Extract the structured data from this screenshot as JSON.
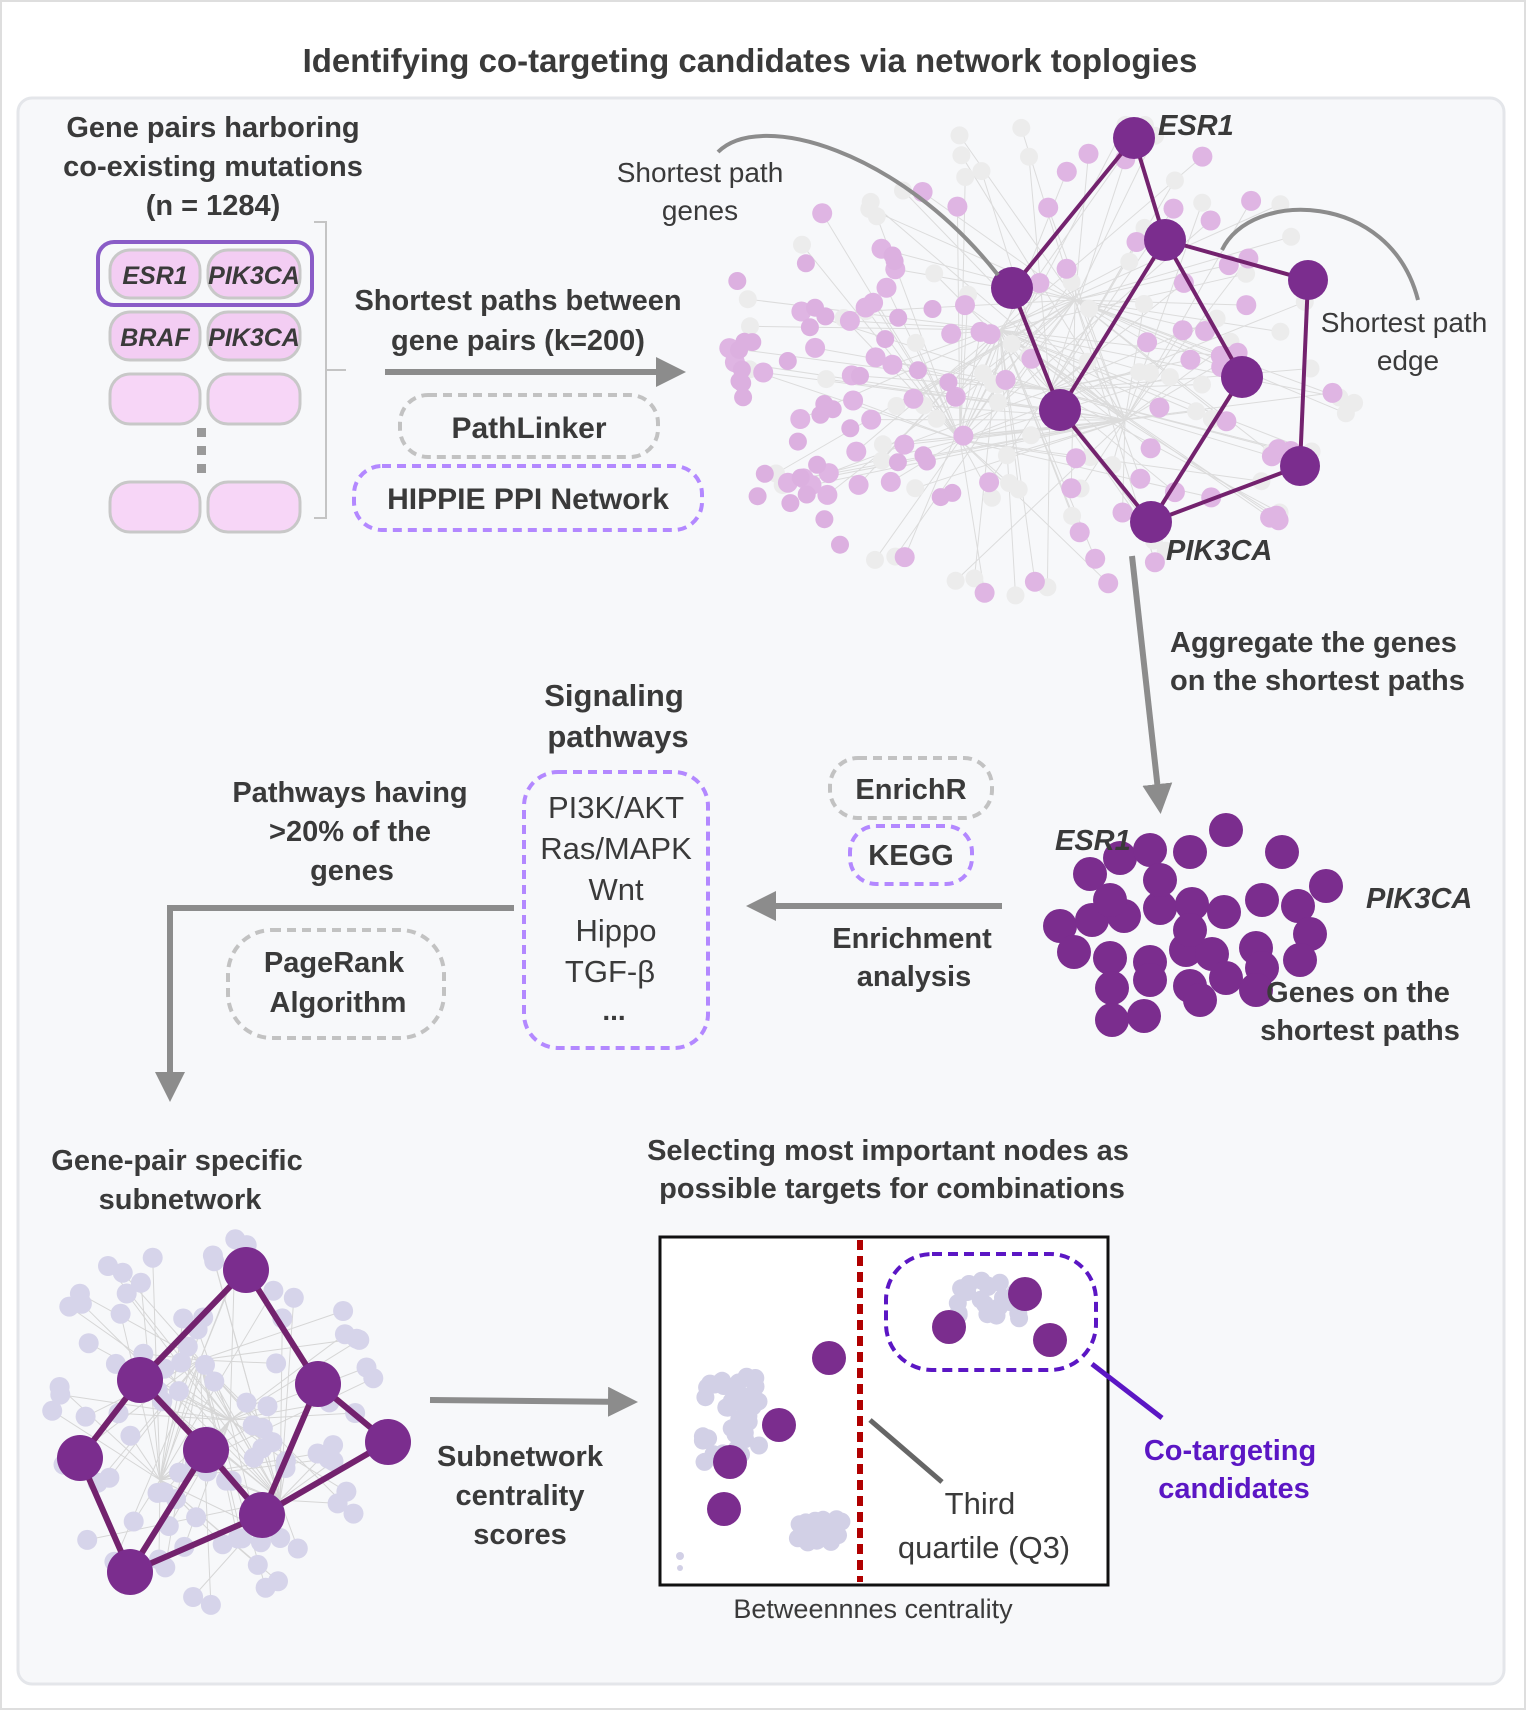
{
  "title": "Identifying co-targeting candidates via network toplogies",
  "gene_pairs": {
    "heading": [
      "Gene pairs harboring",
      "co-existing mutations",
      "(n = 1284)"
    ],
    "pairs": [
      [
        "ESR1",
        "PIK3CA"
      ],
      [
        "BRAF",
        "PIK3CA"
      ]
    ]
  },
  "shortest_paths": {
    "label": [
      "Shortest paths between",
      "gene pairs (k=200)"
    ],
    "tool": "PathLinker",
    "network": "HIPPIE PPI Network"
  },
  "network": {
    "node_top": "ESR1",
    "node_bottom": "PIK3CA",
    "genes_callout": [
      "Shortest path",
      "genes"
    ],
    "edge_callout": [
      "Shortest path",
      "edge"
    ]
  },
  "aggregate": {
    "label": [
      "Aggregate the genes",
      "on the shortest paths"
    ],
    "cluster_left": "ESR1",
    "cluster_right": "PIK3CA",
    "caption": [
      "Genes on the",
      "shortest paths"
    ]
  },
  "enrichment": {
    "tool1": "EnrichR",
    "tool2": "KEGG",
    "label": [
      "Enrichment",
      "analysis"
    ]
  },
  "signaling": {
    "title": [
      "Signaling",
      "pathways"
    ],
    "pathways": [
      "PI3K/AKT",
      "Ras/MAPK",
      "Wnt",
      "Hippo",
      "TGF-β",
      "..."
    ]
  },
  "pathways_filter": {
    "label": [
      "Pathways having",
      ">20% of the",
      "genes"
    ],
    "algorithm": [
      "PageRank",
      "Algorithm"
    ]
  },
  "subnetwork": {
    "title": [
      "Gene-pair specific",
      "subnetwork"
    ],
    "centrality_label": [
      "Subnetwork",
      "centrality",
      "scores"
    ]
  },
  "selection": {
    "title": [
      "Selecting most important nodes as",
      "possible targets for combinations"
    ],
    "q3_label": [
      "Third",
      "quartile (Q3)"
    ],
    "xlabel": "Betweennnes centrality",
    "candidates": [
      "Co-targeting",
      "candidates"
    ]
  },
  "colors": {
    "purple_dark": "#7b2d8e",
    "purple_light": "#d9b1e0",
    "lavender": "#b388ff",
    "grey_arrow": "#8c8c8c",
    "red_dashed": "#b00000",
    "candidate_blue": "#5b16c4"
  }
}
